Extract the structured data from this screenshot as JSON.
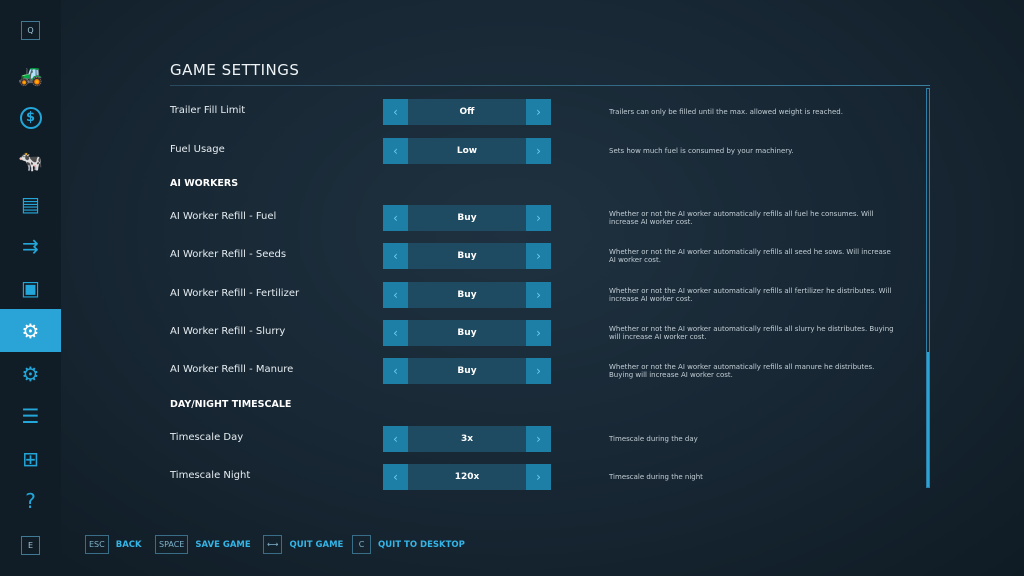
{
  "sidebar": {
    "top_key": "Q",
    "bottom_key": "E",
    "items": [
      {
        "icon": "tractor-icon",
        "glyph": "🚜"
      },
      {
        "icon": "dollar-icon",
        "glyph": "$"
      },
      {
        "icon": "cow-icon",
        "glyph": "🐄"
      },
      {
        "icon": "contracts-icon",
        "glyph": "▤"
      },
      {
        "icon": "production-icon",
        "glyph": "⇉"
      },
      {
        "icon": "statistics-icon",
        "glyph": "▣"
      },
      {
        "icon": "game-settings-icon",
        "glyph": "⚙",
        "active": true
      },
      {
        "icon": "gear-icon",
        "glyph": "⚙"
      },
      {
        "icon": "sliders-icon",
        "glyph": "☰"
      },
      {
        "icon": "hierarchy-icon",
        "glyph": "⊞"
      },
      {
        "icon": "help-icon",
        "glyph": "?"
      }
    ]
  },
  "title": "GAME SETTINGS",
  "rows": [
    {
      "type": "setting",
      "label": "Trailer Fill Limit",
      "value": "Off",
      "desc": "Trailers can only be filled until the max. allowed weight is reached."
    },
    {
      "type": "setting",
      "label": "Fuel Usage",
      "value": "Low",
      "desc": "Sets how much fuel is consumed by your machinery."
    },
    {
      "type": "section",
      "label": "AI WORKERS"
    },
    {
      "type": "setting",
      "label": "AI Worker Refill - Fuel",
      "value": "Buy",
      "desc": "Whether or not the AI worker automatically refills all fuel he consumes. Will increase AI worker cost."
    },
    {
      "type": "setting",
      "label": "AI Worker Refill - Seeds",
      "value": "Buy",
      "desc": "Whether or not the AI worker automatically refills all seed he sows. Will increase AI worker cost."
    },
    {
      "type": "setting",
      "label": "AI Worker Refill - Fertilizer",
      "value": "Buy",
      "desc": "Whether or not the AI worker automatically refills all fertilizer he distributes. Will increase AI worker cost."
    },
    {
      "type": "setting",
      "label": "AI Worker Refill - Slurry",
      "value": "Buy",
      "desc": "Whether or not the AI worker automatically refills all slurry he distributes. Buying will increase AI worker cost."
    },
    {
      "type": "setting",
      "label": "AI Worker Refill - Manure",
      "value": "Buy",
      "desc": "Whether or not the AI worker automatically refills all manure he distributes. Buying will increase AI worker cost."
    },
    {
      "type": "section",
      "label": "DAY/NIGHT TIMESCALE"
    },
    {
      "type": "setting",
      "label": "Timescale Day",
      "value": "3x",
      "desc": "Timescale during the day"
    },
    {
      "type": "setting",
      "label": "Timescale Night",
      "value": "120x",
      "desc": "Timescale during the night"
    }
  ],
  "scroll_position_percent": 100,
  "footer": [
    {
      "key": "ESC",
      "label": "BACK"
    },
    {
      "key": "SPACE",
      "label": "SAVE GAME"
    },
    {
      "key": "⟷",
      "label": "QUIT GAME"
    },
    {
      "key": "C",
      "label": "QUIT TO DESKTOP"
    }
  ],
  "colors": {
    "accent": "#2aa3d6",
    "selector_value_bg": "#1f4b62",
    "selector_arrow_bg": "#1d7fa6"
  }
}
